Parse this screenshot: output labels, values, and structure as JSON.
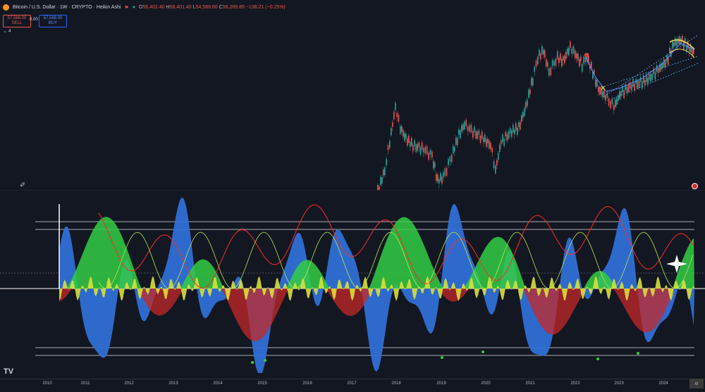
{
  "header": {
    "symbol_title": "Bitcoin / U.S. Dollar · 1W · CRYPTO · Heikin Ashi",
    "status_dot": "●",
    "ohlc": {
      "o_label": "O",
      "o_value": "56,401.40",
      "h_label": "H",
      "h_value": "58,401.40",
      "l_label": "L",
      "l_value": "54,588.60",
      "c_label": "C",
      "c_value": "56,269.85",
      "change": "−138.21 (−0.25%)"
    },
    "sell": {
      "price": "57,588.00",
      "label": "SELL"
    },
    "spread": "0.00",
    "buy": {
      "price": "57,588.00",
      "label": "BUY"
    },
    "indicators_toggle": "⌄ 4"
  },
  "x_axis": {
    "years": [
      "2010",
      "2011",
      "2012",
      "2013",
      "2014",
      "2015",
      "2016",
      "2017",
      "2018",
      "2019",
      "2020",
      "2021",
      "2022",
      "2023",
      "2024"
    ]
  },
  "footer": {
    "logo": "TV",
    "settings_label": "⚙"
  },
  "colors": {
    "background": "#131722",
    "up_candle": "#26a69a",
    "down_candle": "#ef5350",
    "blue_fill": "#2f6fd6",
    "green_fill": "#33cc44",
    "yellow_fill": "#d8e03a",
    "red_fill": "#c62828",
    "red_line": "#ff2a2a",
    "level_line": "#e0e0e0"
  }
}
